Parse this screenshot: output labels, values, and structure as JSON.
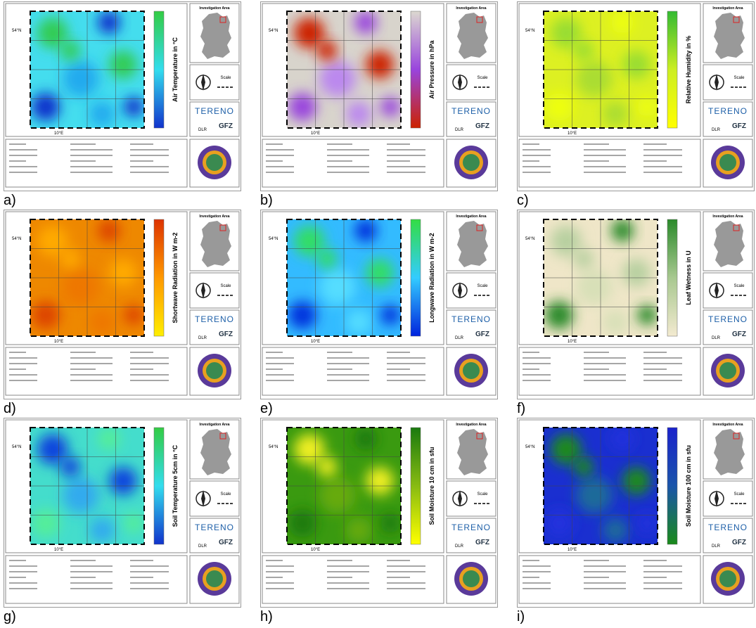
{
  "common": {
    "investigation_area": "Investigation Area",
    "lat_label": "54°N",
    "lon_label": "10°E",
    "scale": "Scale",
    "tereno": "TERENO",
    "gfz": "GFZ",
    "dlr": "DLR"
  },
  "panels": [
    {
      "label": "a)",
      "colorbar_title": "Air Temperature in °C",
      "colors": [
        "#33cc44",
        "#33ddee",
        "#1133cc"
      ],
      "map_base": "#44ddee",
      "map_spots": [
        "#33cc55",
        "#1133cc",
        "#22aaee"
      ]
    },
    {
      "label": "b)",
      "colorbar_title": "Air Pressure in hPa",
      "colors": [
        "#dcd8d0",
        "#9944dd",
        "#cc2200"
      ],
      "map_base": "#d8d4cc",
      "map_spots": [
        "#cc2200",
        "#9944dd",
        "#bb88ee"
      ]
    },
    {
      "label": "c)",
      "colorbar_title": "Relative Humidity in %",
      "colors": [
        "#33bb33",
        "#ccee22",
        "#ffff00"
      ],
      "map_base": "#ddf022",
      "map_spots": [
        "#99dd33",
        "#eeff11",
        "#aadd33"
      ]
    },
    {
      "label": "d)",
      "colorbar_title": "Shortwave Radiation in W m-2",
      "colors": [
        "#dd3300",
        "#ff9900",
        "#ffee00"
      ],
      "map_base": "#ee8800",
      "map_spots": [
        "#ffaa00",
        "#dd4400",
        "#ee7700"
      ]
    },
    {
      "label": "e)",
      "colorbar_title": "Longwave Radiation in W m-2",
      "colors": [
        "#33dd44",
        "#33ccff",
        "#0022dd"
      ],
      "map_base": "#33bbff",
      "map_spots": [
        "#33dd66",
        "#0033dd",
        "#55ddff"
      ]
    },
    {
      "label": "f)",
      "colorbar_title": "Leaf Wetness in U",
      "colors": [
        "#2a8a2a",
        "#a8c890",
        "#f3ead0"
      ],
      "map_base": "#efe6c8",
      "map_spots": [
        "#b8d0a0",
        "#2a8a2a",
        "#d8e0b8"
      ]
    },
    {
      "label": "g)",
      "colorbar_title": "Soil Temperature 5cm in °C",
      "colors": [
        "#33cc44",
        "#33ddee",
        "#1133cc"
      ],
      "map_base": "#44ddcc",
      "map_spots": [
        "#1144dd",
        "#55ee99",
        "#33aaee"
      ]
    },
    {
      "label": "h)",
      "colorbar_title": "Soil Moisture 10 cm in sfu",
      "colors": [
        "#1a7a10",
        "#88bb11",
        "#ffff00"
      ],
      "map_base": "#3a9a10",
      "map_spots": [
        "#eeee22",
        "#1a7a10",
        "#66aa11"
      ]
    },
    {
      "label": "i)",
      "colorbar_title": "Soil Moisture 100 cm in sfu",
      "colors": [
        "#1a22cc",
        "#1a55aa",
        "#1a8a1a"
      ],
      "map_base": "#1a2fd0",
      "map_spots": [
        "#1a8a1a",
        "#2233dd",
        "#1a6a9a"
      ]
    }
  ]
}
